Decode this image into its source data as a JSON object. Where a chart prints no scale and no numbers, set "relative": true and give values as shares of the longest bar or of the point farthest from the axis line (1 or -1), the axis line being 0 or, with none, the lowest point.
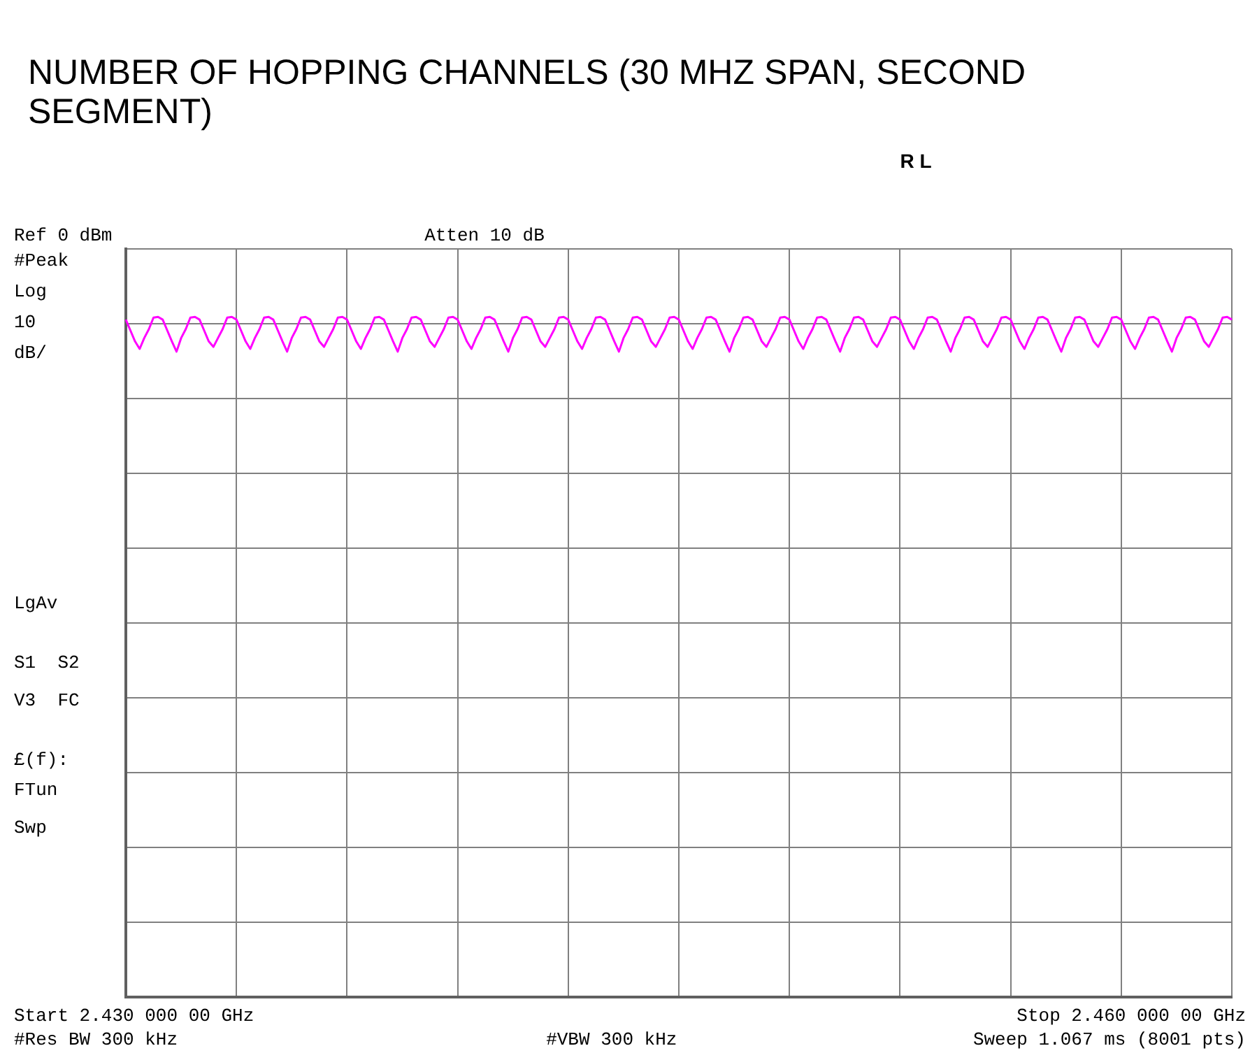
{
  "chart_data": {
    "type": "line",
    "title": "NUMBER OF HOPPING CHANNELS (30 MHZ SPAN, SECOND SEGMENT)",
    "categories": [
      null,
      null,
      null,
      null,
      null,
      null,
      null,
      null,
      null,
      null,
      null,
      null,
      null,
      null,
      null,
      null,
      null,
      null,
      null,
      null,
      null,
      null,
      null,
      null,
      null,
      null,
      null,
      null,
      null,
      null,
      null,
      null,
      null,
      null,
      null,
      null,
      null,
      null,
      null,
      null,
      null,
      null,
      null,
      null,
      null,
      null,
      null,
      null,
      null,
      null,
      null,
      null,
      null,
      null,
      null,
      null,
      null,
      null,
      null,
      null,
      null,
      null,
      null,
      null,
      null,
      null,
      null,
      null,
      null,
      null,
      null,
      null,
      null,
      null,
      null,
      null,
      null,
      null,
      null,
      null,
      null,
      null,
      null,
      null,
      null,
      null,
      null,
      null,
      null,
      null,
      null,
      null,
      null,
      null,
      null,
      null,
      null,
      null,
      null,
      null,
      null,
      null,
      null,
      null,
      null,
      null,
      null,
      null,
      null,
      null,
      null,
      null,
      null,
      null,
      null,
      null,
      null,
      null,
      null,
      null,
      null,
      null,
      null,
      null,
      null,
      null,
      null,
      null,
      null,
      null,
      null,
      null,
      null,
      null,
      null,
      null,
      null,
      null,
      null,
      null,
      null,
      null,
      null,
      null,
      null,
      null,
      null,
      null,
      null,
      null,
      null,
      null,
      null,
      null,
      null,
      null,
      null,
      null,
      null,
      null,
      null,
      null,
      null,
      null,
      null,
      null,
      null,
      null,
      null,
      null,
      null,
      null,
      null,
      null,
      null,
      null,
      null,
      null,
      null,
      null,
      null,
      null,
      null,
      null,
      null,
      null,
      null,
      null,
      null,
      null,
      null,
      null,
      null,
      null,
      null,
      null,
      null,
      null,
      null,
      null,
      null,
      null,
      null,
      null,
      null,
      null,
      null,
      null,
      null,
      null,
      null,
      null,
      null,
      null,
      null,
      null,
      null,
      null,
      null,
      null,
      null,
      null,
      null,
      null,
      null,
      null,
      null,
      null,
      null,
      null,
      null,
      null,
      null,
      null,
      null,
      null,
      null,
      null,
      null,
      null,
      null
    ],
    "series": [
      {
        "color": "#ff00ff",
        "values": [
          0.996,
          0.98,
          0.964,
          0.953,
          0.969,
          0.982,
          0.999,
          1,
          0.996,
          0.98,
          0.964,
          0.949,
          0.969,
          0.982,
          0.999,
          1,
          0.996,
          0.98,
          0.964,
          0.956,
          0.969,
          0.982,
          0.999,
          1,
          0.996,
          0.98,
          0.964,
          0.953,
          0.969,
          0.982,
          0.999,
          1,
          0.996,
          0.98,
          0.964,
          0.949,
          0.969,
          0.982,
          0.999,
          1,
          0.996,
          0.98,
          0.964,
          0.956,
          0.969,
          0.982,
          0.999,
          1,
          0.996,
          0.98,
          0.964,
          0.953,
          0.969,
          0.982,
          0.999,
          1,
          0.996,
          0.98,
          0.964,
          0.949,
          0.969,
          0.982,
          0.999,
          1,
          0.996,
          0.98,
          0.964,
          0.956,
          0.969,
          0.982,
          0.999,
          1,
          0.996,
          0.98,
          0.964,
          0.953,
          0.969,
          0.982,
          0.999,
          1,
          0.996,
          0.98,
          0.964,
          0.949,
          0.969,
          0.982,
          0.999,
          1,
          0.996,
          0.98,
          0.964,
          0.956,
          0.969,
          0.982,
          0.999,
          1,
          0.996,
          0.98,
          0.964,
          0.953,
          0.969,
          0.982,
          0.999,
          1,
          0.996,
          0.98,
          0.964,
          0.949,
          0.969,
          0.982,
          0.999,
          1,
          0.996,
          0.98,
          0.964,
          0.956,
          0.969,
          0.982,
          0.999,
          1,
          0.996,
          0.98,
          0.964,
          0.953,
          0.969,
          0.982,
          0.999,
          1,
          0.996,
          0.98,
          0.964,
          0.949,
          0.969,
          0.982,
          0.999,
          1,
          0.996,
          0.98,
          0.964,
          0.956,
          0.969,
          0.982,
          0.999,
          1,
          0.996,
          0.98,
          0.964,
          0.953,
          0.969,
          0.982,
          0.999,
          1,
          0.996,
          0.98,
          0.964,
          0.949,
          0.969,
          0.982,
          0.999,
          1,
          0.996,
          0.98,
          0.964,
          0.956,
          0.969,
          0.982,
          0.999,
          1,
          0.996,
          0.98,
          0.964,
          0.953,
          0.969,
          0.982,
          0.999,
          1,
          0.996,
          0.98,
          0.964,
          0.949,
          0.969,
          0.982,
          0.999,
          1,
          0.996,
          0.98,
          0.964,
          0.956,
          0.969,
          0.982,
          0.999,
          1,
          0.996,
          0.98,
          0.964,
          0.953,
          0.969,
          0.982,
          0.999,
          1,
          0.996,
          0.98,
          0.964,
          0.949,
          0.969,
          0.982,
          0.999,
          1,
          0.996,
          0.98,
          0.964,
          0.956,
          0.969,
          0.982,
          0.999,
          1,
          0.996,
          0.98,
          0.964,
          0.953,
          0.969,
          0.982,
          0.999,
          1,
          0.996,
          0.98,
          0.964,
          0.949,
          0.969,
          0.982,
          0.999,
          1,
          0.996,
          0.98,
          0.964,
          0.956,
          0.969,
          0.982,
          0.999,
          1,
          0.996
        ]
      }
    ],
    "relative": true,
    "tick_labels": false,
    "grid": true,
    "marker": "none",
    "line_style": "solid",
    "annotations": [
      "Ref 0 dBm",
      "Atten 10 dB",
      "R L",
      "#Peak",
      "Log",
      "10",
      "dB/",
      "LgAv",
      "S1  S2",
      "V3  FC",
      "£(f):",
      "FTun",
      "Swp",
      "#Res BW 300 kHz",
      "#VBW 300 kHz",
      "Sweep 1.067 ms (8001 pts)",
      "Start 2.430 000 00 GHz",
      "Stop 2.460 000 00 GHz"
    ]
  }
}
